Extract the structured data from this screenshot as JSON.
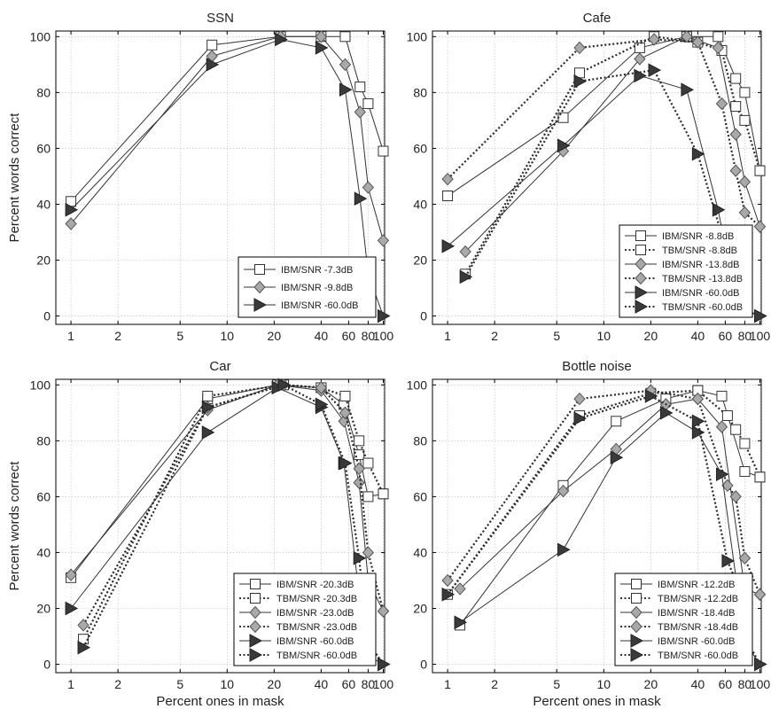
{
  "chart_data": [
    {
      "type": "line",
      "title": "SSN",
      "xlabel": "",
      "ylabel": "Percent words correct",
      "x_ticks": [
        1,
        2,
        5,
        10,
        20,
        40,
        60,
        80,
        100
      ],
      "y_ticks": [
        0,
        20,
        40,
        60,
        80,
        100
      ],
      "ylim": [
        0,
        100
      ],
      "legend_position": "bottom-right",
      "series": [
        {
          "name": "IBM/SNR -7.3dB",
          "marker": "square",
          "dashed": false,
          "x": [
            1,
            8,
            22,
            40,
            57,
            71,
            80,
            100
          ],
          "y": [
            41,
            97,
            100,
            100,
            100,
            82,
            76,
            59
          ]
        },
        {
          "name": "IBM/SNR -9.8dB",
          "marker": "diamond",
          "dashed": false,
          "x": [
            1,
            8,
            22,
            40,
            57,
            71,
            80,
            100
          ],
          "y": [
            33,
            93,
            100,
            100,
            90,
            73,
            46,
            27
          ]
        },
        {
          "name": "IBM/SNR -60.0dB",
          "marker": "triangle",
          "dashed": false,
          "x": [
            1,
            8,
            22,
            40,
            57,
            71,
            80,
            100
          ],
          "y": [
            38,
            90,
            99,
            96,
            81,
            42,
            15,
            0
          ]
        }
      ]
    },
    {
      "type": "line",
      "title": "Cafe",
      "xlabel": "",
      "ylabel": "",
      "x_ticks": [
        1,
        2,
        5,
        10,
        20,
        40,
        60,
        80,
        100
      ],
      "y_ticks": [
        0,
        20,
        40,
        60,
        80,
        100
      ],
      "ylim": [
        0,
        100
      ],
      "legend_position": "bottom-right",
      "series": [
        {
          "name": "IBM/SNR -8.8dB",
          "marker": "square",
          "dashed": false,
          "x": [
            1,
            5.5,
            17,
            34,
            54,
            70,
            80,
            100
          ],
          "y": [
            43,
            71,
            96,
            100,
            100,
            85,
            80,
            52
          ]
        },
        {
          "name": "TBM/SNR -8.8dB",
          "marker": "square",
          "dashed": true,
          "x": [
            1.3,
            7,
            21,
            40,
            57,
            70,
            80,
            100
          ],
          "y": [
            15,
            87,
            100,
            98,
            95,
            75,
            70,
            52
          ]
        },
        {
          "name": "IBM/SNR -13.8dB",
          "marker": "diamond",
          "dashed": false,
          "x": [
            1.3,
            5.5,
            17,
            34,
            54,
            70,
            80,
            100
          ],
          "y": [
            23,
            59,
            92,
            100,
            96,
            65,
            48,
            32
          ]
        },
        {
          "name": "TBM/SNR -13.8dB",
          "marker": "diamond",
          "dashed": true,
          "x": [
            1,
            7,
            21,
            40,
            57,
            70,
            80,
            100
          ],
          "y": [
            49,
            96,
            99,
            98,
            76,
            52,
            37,
            32
          ]
        },
        {
          "name": "IBM/SNR -60.0dB",
          "marker": "triangle",
          "dashed": false,
          "x": [
            1,
            5.5,
            17,
            34,
            54,
            70,
            80,
            100
          ],
          "y": [
            25,
            61,
            86,
            81,
            38,
            6,
            2,
            0
          ]
        },
        {
          "name": "TBM/SNR -60.0dB",
          "marker": "triangle",
          "dashed": true,
          "x": [
            1.3,
            7,
            21,
            40,
            57,
            70,
            80,
            100
          ],
          "y": [
            14,
            84,
            88,
            58,
            29,
            4,
            2,
            0
          ]
        }
      ]
    },
    {
      "type": "line",
      "title": "Car",
      "xlabel": "Percent ones in mask",
      "ylabel": "Percent words correct",
      "x_ticks": [
        1,
        2,
        5,
        10,
        20,
        40,
        60,
        80,
        100
      ],
      "y_ticks": [
        0,
        20,
        40,
        60,
        80,
        100
      ],
      "ylim": [
        0,
        100
      ],
      "legend_position": "bottom-right",
      "series": [
        {
          "name": "IBM/SNR -20.3dB",
          "marker": "square",
          "dashed": false,
          "x": [
            1,
            7.5,
            21,
            40,
            56,
            70,
            80,
            100
          ],
          "y": [
            31,
            95,
            100,
            99,
            93,
            75,
            60,
            61
          ]
        },
        {
          "name": "TBM/SNR -20.3dB",
          "marker": "square",
          "dashed": true,
          "x": [
            1.2,
            7.5,
            23,
            40,
            57,
            70,
            80,
            100
          ],
          "y": [
            9,
            96,
            100,
            99,
            96,
            80,
            72,
            61
          ]
        },
        {
          "name": "IBM/SNR -23.0dB",
          "marker": "diamond",
          "dashed": false,
          "x": [
            1,
            7.5,
            21,
            40,
            56,
            70,
            80,
            100
          ],
          "y": [
            32,
            91,
            100,
            98,
            87,
            65,
            30,
            19
          ]
        },
        {
          "name": "TBM/SNR -23.0dB",
          "marker": "diamond",
          "dashed": true,
          "x": [
            1.2,
            7.5,
            23,
            40,
            57,
            70,
            80,
            100
          ],
          "y": [
            14,
            92,
            100,
            99,
            90,
            70,
            40,
            19
          ]
        },
        {
          "name": "IBM/SNR -60.0dB",
          "marker": "triangle",
          "dashed": false,
          "x": [
            1,
            7.5,
            21,
            40,
            56,
            70,
            80,
            100
          ],
          "y": [
            20,
            83,
            99,
            92,
            72,
            25,
            3,
            0
          ]
        },
        {
          "name": "TBM/SNR -60.0dB",
          "marker": "triangle",
          "dashed": true,
          "x": [
            1.2,
            7.5,
            23,
            40,
            57,
            70,
            80,
            100
          ],
          "y": [
            6,
            92,
            100,
            93,
            72,
            38,
            8,
            0
          ]
        }
      ]
    },
    {
      "type": "line",
      "title": "Bottle noise",
      "xlabel": "Percent ones in mask",
      "ylabel": "",
      "x_ticks": [
        1,
        2,
        5,
        10,
        20,
        40,
        60,
        80,
        100
      ],
      "y_ticks": [
        0,
        20,
        40,
        60,
        80,
        100
      ],
      "ylim": [
        0,
        100
      ],
      "legend_position": "bottom-right",
      "series": [
        {
          "name": "IBM/SNR -12.2dB",
          "marker": "square",
          "dashed": false,
          "x": [
            1.2,
            5.5,
            12,
            25,
            40,
            57,
            80,
            100
          ],
          "y": [
            14,
            64,
            87,
            95,
            98,
            96,
            69,
            67
          ]
        },
        {
          "name": "TBM/SNR -12.2dB",
          "marker": "square",
          "dashed": true,
          "x": [
            1,
            7,
            20,
            40,
            62,
            70,
            80,
            100
          ],
          "y": [
            25,
            89,
            97,
            98,
            89,
            84,
            79,
            67
          ]
        },
        {
          "name": "IBM/SNR -18.4dB",
          "marker": "diamond",
          "dashed": false,
          "x": [
            1.2,
            5.5,
            12,
            25,
            40,
            57,
            80,
            100
          ],
          "y": [
            27,
            62,
            77,
            93,
            95,
            85,
            27,
            25
          ]
        },
        {
          "name": "TBM/SNR -18.4dB",
          "marker": "diamond",
          "dashed": true,
          "x": [
            1,
            7,
            20,
            40,
            62,
            70,
            80,
            100
          ],
          "y": [
            30,
            95,
            98,
            95,
            64,
            60,
            38,
            25
          ]
        },
        {
          "name": "IBM/SNR -60.0dB",
          "marker": "triangle",
          "dashed": false,
          "x": [
            1.2,
            5.5,
            12,
            25,
            40,
            57,
            80,
            100
          ],
          "y": [
            15,
            41,
            74,
            90,
            83,
            68,
            8,
            0
          ]
        },
        {
          "name": "TBM/SNR -60.0dB",
          "marker": "triangle",
          "dashed": true,
          "x": [
            1,
            7,
            20,
            40,
            62,
            70,
            80,
            100
          ],
          "y": [
            25,
            88,
            96,
            87,
            37,
            30,
            10,
            0
          ]
        }
      ]
    }
  ]
}
